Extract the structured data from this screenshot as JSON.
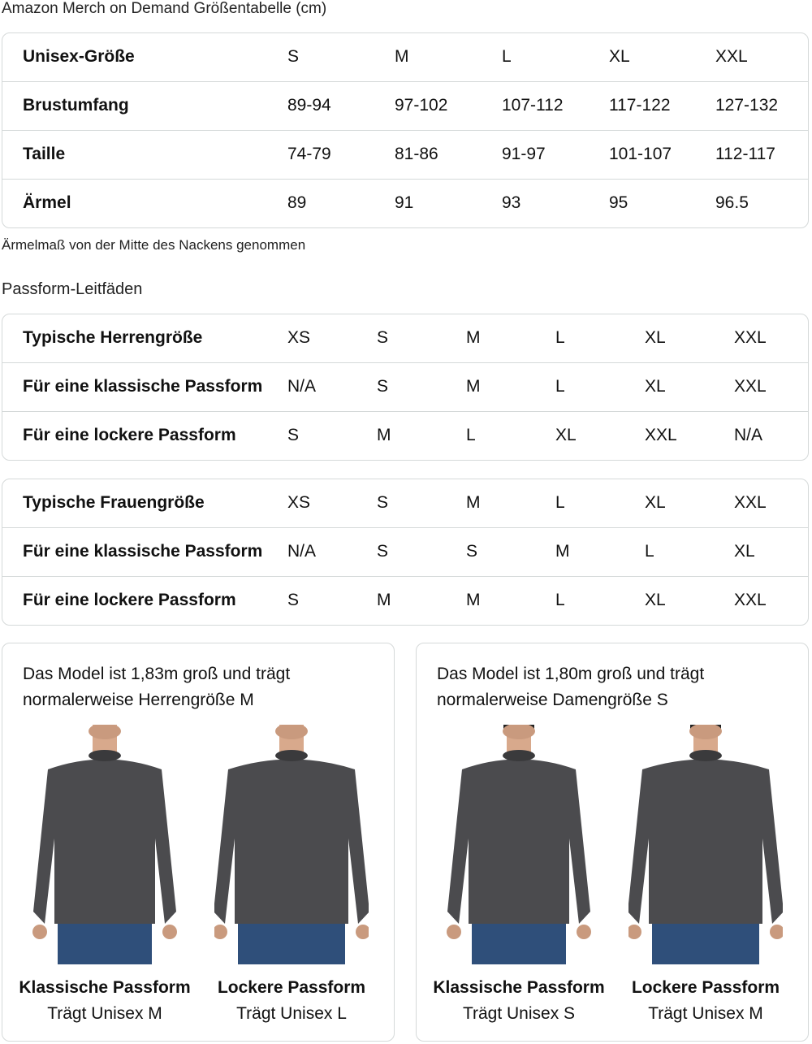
{
  "title": "Amazon Merch on Demand Größentabelle (cm)",
  "size_table": {
    "rows": [
      {
        "label": "Unisex-Größe",
        "values": [
          "S",
          "M",
          "L",
          "XL",
          "XXL"
        ]
      },
      {
        "label": "Brustumfang",
        "values": [
          "89-94",
          "97-102",
          "107-112",
          "117-122",
          "127-132"
        ]
      },
      {
        "label": "Taille",
        "values": [
          "74-79",
          "81-86",
          "91-97",
          "101-107",
          "112-117"
        ]
      },
      {
        "label": "Ärmel",
        "values": [
          "89",
          "91",
          "93",
          "95",
          "96.5"
        ]
      }
    ]
  },
  "sleeve_note": "Ärmelmaß von der Mitte des Nackens genommen",
  "fit_heading": "Passform-Leitfäden",
  "men_table": {
    "rows": [
      {
        "label": "Typische Herrengröße",
        "values": [
          "XS",
          "S",
          "M",
          "L",
          "XL",
          "XXL"
        ]
      },
      {
        "label": "Für eine klassische Passform",
        "values": [
          "N/A",
          "S",
          "M",
          "L",
          "XL",
          "XXL"
        ]
      },
      {
        "label": "Für eine lockere Passform",
        "values": [
          "S",
          "M",
          "L",
          "XL",
          "XXL",
          "N/A"
        ]
      }
    ]
  },
  "women_table": {
    "rows": [
      {
        "label": "Typische Frauengröße",
        "values": [
          "XS",
          "S",
          "M",
          "L",
          "XL",
          "XXL"
        ]
      },
      {
        "label": "Für eine klassische Passform",
        "values": [
          "N/A",
          "S",
          "S",
          "M",
          "L",
          "XL"
        ]
      },
      {
        "label": "Für eine lockere Passform",
        "values": [
          "S",
          "M",
          "M",
          "L",
          "XL",
          "XXL"
        ]
      }
    ]
  },
  "cards": [
    {
      "caption_1": "Das Model ist 1,83m groß und trägt",
      "caption_2": "normalerweise Herrengröße M",
      "figures": [
        {
          "label": "Klassische Passform",
          "size": "Trägt Unisex M"
        },
        {
          "label": "Lockere Passform",
          "size": "Trägt Unisex L"
        }
      ]
    },
    {
      "caption_1": "Das Model ist 1,80m groß und trägt",
      "caption_2": "normalerweise Damengröße S",
      "figures": [
        {
          "label": "Klassische Passform",
          "size": "Trägt Unisex S"
        },
        {
          "label": "Lockere Passform",
          "size": "Trägt Unisex M"
        }
      ]
    }
  ],
  "colors": {
    "border": "#d5d9d9",
    "sweatshirt": "#4b4b4e",
    "jeans": "#2f4f7a"
  }
}
